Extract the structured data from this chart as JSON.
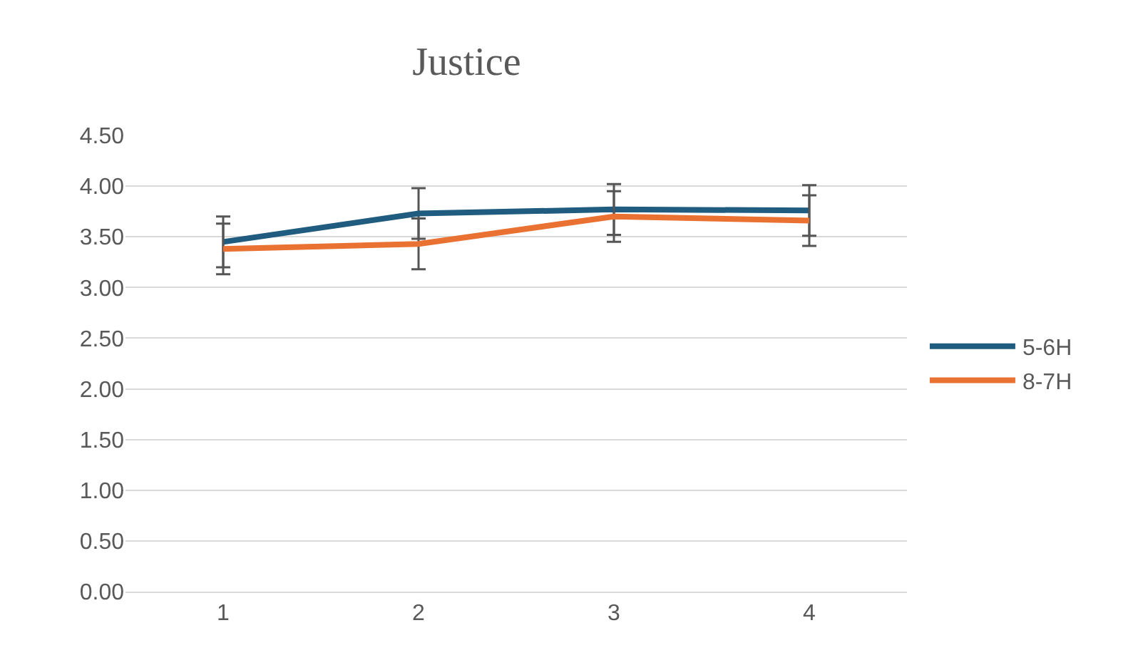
{
  "chart_data": {
    "type": "line",
    "title": "Justice",
    "categories": [
      "1",
      "2",
      "3",
      "4"
    ],
    "series": [
      {
        "name": "5-6H",
        "color": "#1f5c7f",
        "values": [
          3.45,
          3.73,
          3.77,
          3.76
        ],
        "errors": [
          0.25,
          0.25,
          0.25,
          0.25
        ]
      },
      {
        "name": "8-7H",
        "color": "#e97132",
        "values": [
          3.38,
          3.43,
          3.7,
          3.66
        ],
        "errors": [
          0.25,
          0.25,
          0.25,
          0.25
        ]
      }
    ],
    "ylim": [
      0,
      4.5
    ],
    "yticks": [
      {
        "value": 0,
        "label": "0.00"
      },
      {
        "value": 0.5,
        "label": "0.50"
      },
      {
        "value": 1,
        "label": "1.00"
      },
      {
        "value": 1.5,
        "label": "1.50"
      },
      {
        "value": 2,
        "label": "2.00"
      },
      {
        "value": 2.5,
        "label": "2.50"
      },
      {
        "value": 3,
        "label": "3.00"
      },
      {
        "value": 3.5,
        "label": "3.50"
      },
      {
        "value": 4,
        "label": "4.00"
      },
      {
        "value": 4.5,
        "label": "4.50"
      }
    ],
    "grid": "y",
    "legend": "right",
    "marker": "none",
    "line_style": "solid"
  }
}
